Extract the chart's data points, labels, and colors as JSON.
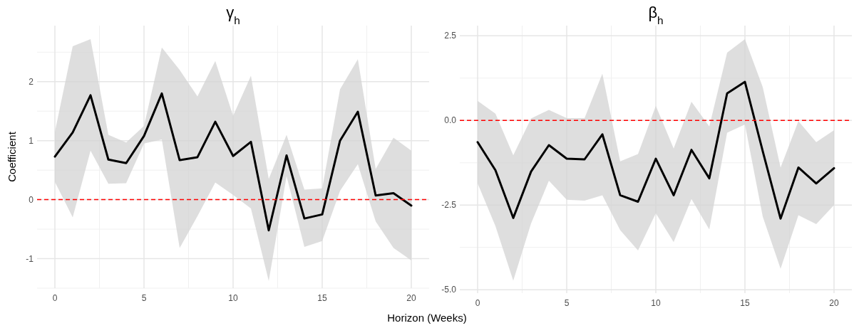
{
  "chart_data": [
    {
      "type": "line",
      "title": "γ$_{h}$",
      "xlabel": "Horizon (Weeks)",
      "ylabel": "Coefficient",
      "x": [
        0,
        1,
        2,
        3,
        4,
        5,
        6,
        7,
        8,
        9,
        10,
        11,
        12,
        13,
        14,
        15,
        16,
        17,
        18,
        19,
        20
      ],
      "xlim": [
        -1,
        21
      ],
      "xticks": [
        0,
        5,
        10,
        15,
        20
      ],
      "ylim": [
        -1.5,
        2.95
      ],
      "yticks": [
        -1,
        0,
        1,
        2
      ],
      "grid": true,
      "series": [
        {
          "color": "#000000",
          "values": [
            0.73,
            1.14,
            1.77,
            0.68,
            0.62,
            1.08,
            1.8,
            0.67,
            0.72,
            1.32,
            0.74,
            0.98,
            -0.52,
            0.75,
            -0.32,
            -0.25,
            1.0,
            1.49,
            0.07,
            0.11,
            -0.1
          ],
          "lower": [
            0.3,
            -0.3,
            0.83,
            0.27,
            0.28,
            0.95,
            1.02,
            -0.82,
            -0.28,
            0.29,
            0.08,
            -0.15,
            -1.38,
            0.4,
            -0.8,
            -0.7,
            0.15,
            0.6,
            -0.37,
            -0.82,
            -1.03
          ],
          "upper": [
            1.15,
            2.6,
            2.72,
            1.1,
            0.97,
            1.25,
            2.58,
            2.2,
            1.75,
            2.35,
            1.42,
            2.1,
            0.35,
            1.1,
            0.17,
            0.19,
            1.87,
            2.38,
            0.52,
            1.05,
            0.83
          ]
        }
      ],
      "ref_lines": [
        {
          "axis": "y",
          "value": 0,
          "color": "#ff0000",
          "line_style": "dashed"
        }
      ]
    },
    {
      "type": "line",
      "title": "β$_{h}$",
      "x": [
        0,
        1,
        2,
        3,
        4,
        5,
        6,
        7,
        8,
        9,
        10,
        11,
        12,
        13,
        14,
        15,
        16,
        17,
        18,
        19,
        20
      ],
      "xlim": [
        -1,
        21
      ],
      "xticks": [
        0,
        5,
        10,
        15,
        20
      ],
      "ylim": [
        -5.1,
        2.8
      ],
      "yticks": [
        {
          "value": -5,
          "label": "-5.0"
        },
        {
          "value": -2.5,
          "label": "-2.5"
        },
        {
          "value": 0,
          "label": "0.0"
        },
        {
          "value": 2.5,
          "label": "2.5"
        }
      ],
      "grid": true,
      "series": [
        {
          "color": "#000000",
          "values": [
            -0.64,
            -1.47,
            -2.88,
            -1.51,
            -0.73,
            -1.13,
            -1.15,
            -0.41,
            -2.21,
            -2.4,
            -1.13,
            -2.21,
            -0.87,
            -1.71,
            0.8,
            1.14,
            -0.91,
            -2.9,
            -1.39,
            -1.86,
            -1.41
          ],
          "lower": [
            -1.86,
            -3.12,
            -4.73,
            -3.04,
            -1.78,
            -2.34,
            -2.37,
            -2.21,
            -3.24,
            -3.84,
            -2.74,
            -3.59,
            -2.32,
            -3.22,
            -0.36,
            -0.12,
            -2.84,
            -4.38,
            -2.8,
            -3.06,
            -2.5
          ],
          "upper": [
            0.58,
            0.2,
            -1.03,
            0.06,
            0.31,
            0.07,
            0.07,
            1.38,
            -1.21,
            -0.99,
            0.43,
            -0.83,
            0.55,
            -0.18,
            2.0,
            2.4,
            0.98,
            -1.39,
            -0.02,
            -0.64,
            -0.29
          ]
        }
      ],
      "ref_lines": [
        {
          "axis": "y",
          "value": 0,
          "color": "#ff0000",
          "line_style": "dashed"
        }
      ]
    }
  ]
}
